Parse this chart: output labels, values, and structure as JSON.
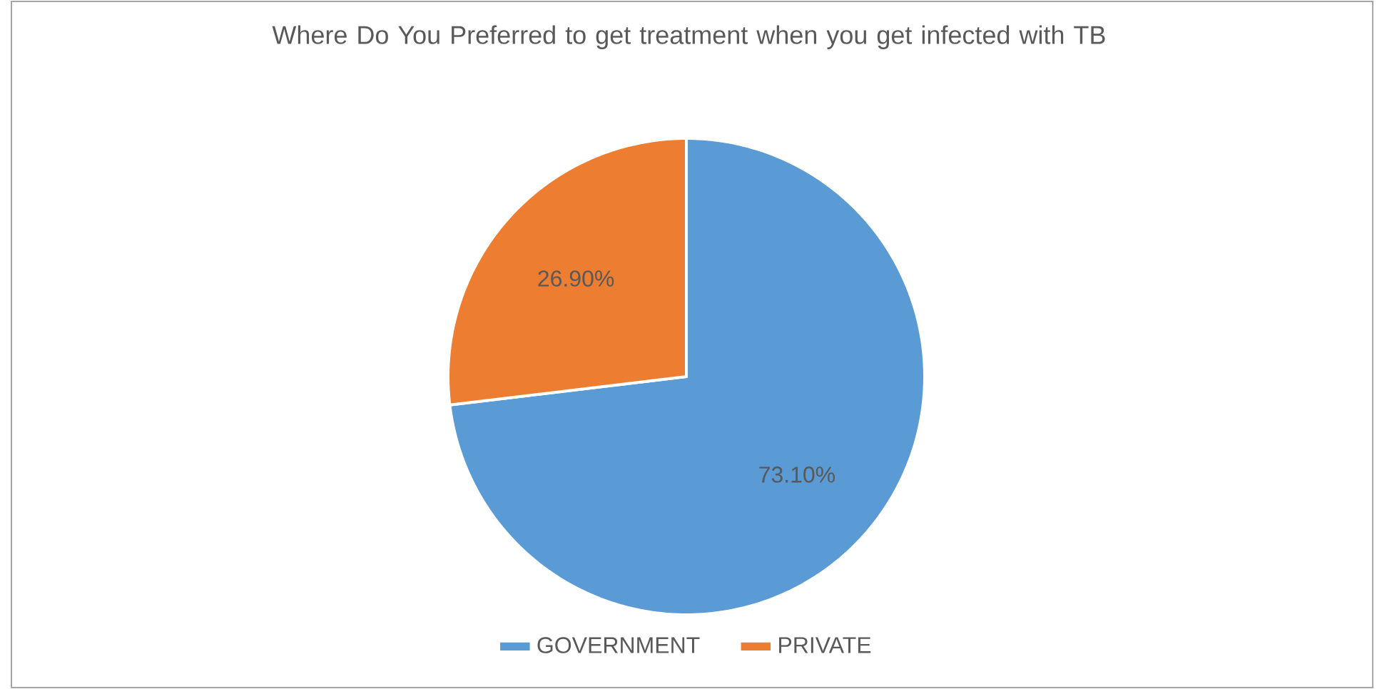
{
  "chart_data": {
    "type": "pie",
    "title": "Where Do You Preferred to get treatment when you get infected with TB",
    "categories": [
      "GOVERNMENT",
      "PRIVATE"
    ],
    "values": [
      73.1,
      26.9
    ],
    "colors": [
      "#5b9bd5",
      "#ed7d31"
    ],
    "value_labels": [
      "73.10%",
      "26.90%"
    ],
    "legend": "bottom"
  }
}
